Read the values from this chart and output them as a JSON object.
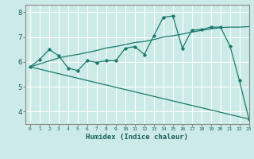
{
  "xlabel": "Humidex (Indice chaleur)",
  "background_color": "#cceae7",
  "grid_color": "#ffffff",
  "line_color": "#1a7a6e",
  "xlim": [
    -0.5,
    23
  ],
  "ylim": [
    3.5,
    8.3
  ],
  "yticks": [
    4,
    5,
    6,
    7,
    8
  ],
  "xticks": [
    0,
    1,
    2,
    3,
    4,
    5,
    6,
    7,
    8,
    9,
    10,
    11,
    12,
    13,
    14,
    15,
    16,
    17,
    18,
    19,
    20,
    21,
    22,
    23
  ],
  "line1_x": [
    0,
    1,
    2,
    3,
    4,
    5,
    6,
    7,
    8,
    9,
    10,
    11,
    12,
    13,
    14,
    15,
    16,
    17,
    18,
    19,
    20,
    21,
    22,
    23
  ],
  "line1_y": [
    5.8,
    6.1,
    6.5,
    6.25,
    5.75,
    5.65,
    6.05,
    5.98,
    6.05,
    6.05,
    6.55,
    6.62,
    6.3,
    7.05,
    7.8,
    7.85,
    6.55,
    7.28,
    7.3,
    7.4,
    7.4,
    6.65,
    5.25,
    3.7
  ],
  "line2_x": [
    0,
    1,
    2,
    3,
    4,
    5,
    6,
    7,
    8,
    9,
    10,
    11,
    12,
    13,
    14,
    15,
    16,
    17,
    18,
    19,
    20,
    21,
    22,
    23
  ],
  "line2_y": [
    5.8,
    5.92,
    6.04,
    6.16,
    6.24,
    6.3,
    6.38,
    6.46,
    6.56,
    6.62,
    6.7,
    6.78,
    6.82,
    6.9,
    7.0,
    7.05,
    7.12,
    7.2,
    7.27,
    7.33,
    7.38,
    7.4,
    7.4,
    7.42
  ],
  "line3_x": [
    0,
    23
  ],
  "line3_y": [
    5.8,
    3.7
  ]
}
